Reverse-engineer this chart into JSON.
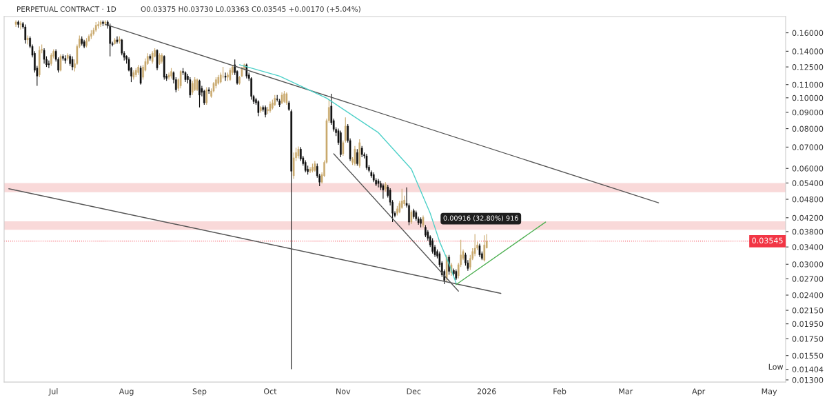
{
  "chart_data": {
    "type": "candlestick",
    "title": "PERPETUAL CONTRACT · 1D",
    "subtitle": "O0.03375 H0.03730 L0.03363 C0.03545 +0.00170 (+5.04%)",
    "colors": [
      "#c9a96e",
      "#0d0d0d",
      "#c9a96e",
      "#0d0d0d",
      "#0d0d0d",
      "#c9a96e",
      "#0d0d0d",
      "#0d0d0d",
      "#0d0d0d",
      "#0d0d0d",
      "#c9a96e",
      "#c9a96e",
      "#0d0d0d",
      "#0d0d0d",
      "#0d0d0d",
      "#c9a96e",
      "#c9a96e",
      "#0d0d0d",
      "#0d0d0d",
      "#c9a96e",
      "#0d0d0d",
      "#0d0d0d",
      "#c9a96e",
      "#0d0d0d",
      "#0d0d0d",
      "#c9a96e",
      "#c9a96e",
      "#c9a96e",
      "#0d0d0d",
      "#0d0d0d",
      "#c9a96e",
      "#c9a96e",
      "#c9a96e",
      "#c9a96e",
      "#c9a96e",
      "#c9a96e",
      "#c9a96e",
      "#0d0d0d",
      "#c9a96e",
      "#0d0d0d",
      "#0d0d0d",
      "#0d0d0d",
      "#c9a96e",
      "#0d0d0d",
      "#c9a96e",
      "#0d0d0d",
      "#0d0d0d",
      "#0d0d0d",
      "#0d0d0d",
      "#0d0d0d",
      "#c9a96e",
      "#c9a96e",
      "#c9a96e",
      "#0d0d0d",
      "#c9a96e",
      "#c9a96e",
      "#c9a96e",
      "#0d0d0d",
      "#c9a96e",
      "#c9a96e",
      "#0d0d0d",
      "#c9a96e",
      "#c9a96e",
      "#0d0d0d",
      "#0d0d0d",
      "#c9a96e",
      "#c9a96e",
      "#0d0d0d",
      "#0d0d0d",
      "#c9a96e",
      "#c9a96e",
      "#0d0d0d",
      "#0d0d0d",
      "#0d0d0d",
      "#0d0d0d",
      "#c9a96e",
      "#c9a96e",
      "#c9a96e",
      "#0d0d0d",
      "#0d0d0d",
      "#0d0d0d",
      "#c9a96e",
      "#0d0d0d",
      "#c9a96e",
      "#c9a96e",
      "#c9a96e",
      "#c9a96e",
      "#c9a96e",
      "#c9a96e",
      "#0d0d0d",
      "#c9a96e",
      "#c9a96e",
      "#c9a96e",
      "#0d0d0d",
      "#0d0d0d",
      "#c9a96e",
      "#c9a96e",
      "#c9a96e",
      "#0d0d0d",
      "#0d0d0d",
      "#0d0d0d",
      "#0d0d0d",
      "#0d0d0d",
      "#0d0d0d",
      "#c9a96e",
      "#0d0d0d",
      "#0d0d0d",
      "#c9a96e",
      "#c9a96e",
      "#c9a96e",
      "#c9a96e",
      "#0d0d0d",
      "#0d0d0d",
      "#c9a96e",
      "#c9a96e",
      "#c9a96e",
      "#0d0d0d",
      "#0d0d0d",
      "#c9a96e",
      "#c9a96e",
      "#c9a96e",
      "#0d0d0d",
      "#0d0d0d",
      "#0d0d0d",
      "#0d0d0d",
      "#c9a96e",
      "#c9a96e",
      "#c9a96e",
      "#0d0d0d",
      "#0d0d0d",
      "#c9a96e",
      "#c9a96e",
      "#c9a96e",
      "#c9a96e",
      "#0d0d0d",
      "#0d0d0d",
      "#0d0d0d",
      "#0d0d0d",
      "#0d0d0d",
      "#c9a96e",
      "#c9a96e",
      "#0d0d0d",
      "#0d0d0d",
      "#c9a96e",
      "#c9a96e",
      "#0d0d0d",
      "#c9a96e",
      "#0d0d0d",
      "#0d0d0d",
      "#0d0d0d",
      "#0d0d0d",
      "#0d0d0d",
      "#0d0d0d",
      "#0d0d0d",
      "#0d0d0d",
      "#0d0d0d",
      "#0d0d0d",
      "#c9a96e",
      "#0d0d0d",
      "#0d0d0d",
      "#0d0d0d",
      "#0d0d0d",
      "#c9a96e",
      "#c9a96e",
      "#c9a96e",
      "#c9a96e",
      "#0d0d0d",
      "#0d0d0d",
      "#c9a96e",
      "#0d0d0d",
      "#0d0d0d",
      "#0d0d0d",
      "#0d0d0d",
      "#c9a96e",
      "#0d0d0d",
      "#0d0d0d",
      "#0d0d0d",
      "#0d0d0d",
      "#0d0d0d",
      "#0d0d0d",
      "#0d0d0d",
      "#0d0d0d",
      "#0d0d0d",
      "#c9a96e",
      "#0d0d0d",
      "#c9a96e",
      "#0d0d0d",
      "#0d0d0d",
      "#c9a96e",
      "#c9a96e",
      "#c9a96e",
      "#0d0d0d",
      "#0d0d0d",
      "#c9a96e",
      "#c9a96e",
      "#c9a96e",
      "#c9a96e",
      "#0d0d0d",
      "#0d0d0d",
      "#c9a96e",
      "#c9a96e"
    ],
    "x": [
      "2025-06-15",
      "2025-06-16",
      "2025-06-17",
      "2025-06-18",
      "2025-06-19",
      "2025-06-20",
      "2025-06-21",
      "2025-06-22",
      "2025-06-23",
      "2025-06-24",
      "2025-06-25",
      "2025-06-26",
      "2025-06-27",
      "2025-06-28",
      "2025-06-29",
      "2025-06-30",
      "2025-07-01",
      "2025-07-02",
      "2025-07-03",
      "2025-07-04",
      "2025-07-05",
      "2025-07-06",
      "2025-07-07",
      "2025-07-08",
      "2025-07-09",
      "2025-07-10",
      "2025-07-11",
      "2025-07-12",
      "2025-07-13",
      "2025-07-14",
      "2025-07-15",
      "2025-07-16",
      "2025-07-17",
      "2025-07-18",
      "2025-07-19",
      "2025-07-20",
      "2025-07-21",
      "2025-07-22",
      "2025-07-23",
      "2025-07-24",
      "2025-07-25",
      "2025-07-26",
      "2025-07-27",
      "2025-07-28",
      "2025-07-29",
      "2025-07-30",
      "2025-07-31",
      "2025-08-01",
      "2025-08-02",
      "2025-08-03",
      "2025-08-04",
      "2025-08-05",
      "2025-08-06",
      "2025-08-07",
      "2025-08-08",
      "2025-08-09",
      "2025-08-10",
      "2025-08-11",
      "2025-08-12",
      "2025-08-13",
      "2025-08-14",
      "2025-08-15",
      "2025-08-16",
      "2025-08-17",
      "2025-08-18",
      "2025-08-19",
      "2025-08-20",
      "2025-08-21",
      "2025-08-22",
      "2025-08-23",
      "2025-08-24",
      "2025-08-25",
      "2025-08-26",
      "2025-08-27",
      "2025-08-28",
      "2025-08-29",
      "2025-08-30",
      "2025-08-31",
      "2025-09-01",
      "2025-09-02",
      "2025-09-03",
      "2025-09-04",
      "2025-09-05",
      "2025-09-06",
      "2025-09-07",
      "2025-09-08",
      "2025-09-09",
      "2025-09-10",
      "2025-09-11",
      "2025-09-12",
      "2025-09-13",
      "2025-09-14",
      "2025-09-15",
      "2025-09-16",
      "2025-09-17",
      "2025-09-18",
      "2025-09-19",
      "2025-09-20",
      "2025-09-21",
      "2025-09-22",
      "2025-09-23",
      "2025-09-24",
      "2025-09-25",
      "2025-09-26",
      "2025-09-27",
      "2025-09-28",
      "2025-09-29",
      "2025-09-30",
      "2025-10-01",
      "2025-10-02",
      "2025-10-03",
      "2025-10-04",
      "2025-10-05",
      "2025-10-06",
      "2025-10-07",
      "2025-10-08",
      "2025-10-09",
      "2025-10-10",
      "2025-10-11",
      "2025-10-12",
      "2025-10-13",
      "2025-10-14",
      "2025-10-15",
      "2025-10-16",
      "2025-10-17",
      "2025-10-18",
      "2025-10-19",
      "2025-10-20",
      "2025-10-21",
      "2025-10-22",
      "2025-10-23",
      "2025-10-24",
      "2025-10-25",
      "2025-10-26",
      "2025-10-27",
      "2025-10-28",
      "2025-10-29",
      "2025-10-30",
      "2025-10-31",
      "2025-11-01",
      "2025-11-02",
      "2025-11-03",
      "2025-11-04",
      "2025-11-05",
      "2025-11-06",
      "2025-11-07",
      "2025-11-08",
      "2025-11-09",
      "2025-11-10",
      "2025-11-11",
      "2025-11-12",
      "2025-11-13",
      "2025-11-14",
      "2025-11-15",
      "2025-11-16",
      "2025-11-17",
      "2025-11-18",
      "2025-11-19",
      "2025-11-20",
      "2025-11-21",
      "2025-11-22",
      "2025-11-23",
      "2025-11-24",
      "2025-11-25",
      "2025-11-26",
      "2025-11-27",
      "2025-11-28",
      "2025-11-29",
      "2025-11-30",
      "2025-12-01",
      "2025-12-02",
      "2025-12-03",
      "2025-12-04",
      "2025-12-05",
      "2025-12-06",
      "2025-12-07",
      "2025-12-08",
      "2025-12-09",
      "2025-12-10",
      "2025-12-11",
      "2025-12-12",
      "2025-12-13",
      "2025-12-14",
      "2025-12-15",
      "2025-12-16",
      "2025-12-17",
      "2025-12-18",
      "2025-12-19",
      "2025-12-20",
      "2025-12-21",
      "2025-12-22",
      "2025-12-23",
      "2025-12-24",
      "2025-12-25",
      "2025-12-26",
      "2025-12-27",
      "2025-12-28",
      "2025-12-29",
      "2025-12-30",
      "2025-12-31",
      "2026-01-01"
    ],
    "ohlc": [
      [
        0.17,
        0.175,
        0.167,
        0.173
      ],
      [
        0.173,
        0.175,
        0.166,
        0.17
      ],
      [
        0.17,
        0.174,
        0.164,
        0.171
      ],
      [
        0.171,
        0.173,
        0.165,
        0.167
      ],
      [
        0.167,
        0.17,
        0.148,
        0.152
      ],
      [
        0.152,
        0.157,
        0.147,
        0.154
      ],
      [
        0.154,
        0.156,
        0.143,
        0.145
      ],
      [
        0.145,
        0.147,
        0.134,
        0.136
      ],
      [
        0.138,
        0.14,
        0.12,
        0.122
      ],
      [
        0.124,
        0.126,
        0.109,
        0.117
      ],
      [
        0.118,
        0.145,
        0.116,
        0.141
      ],
      [
        0.141,
        0.147,
        0.138,
        0.142
      ],
      [
        0.141,
        0.143,
        0.128,
        0.132
      ],
      [
        0.132,
        0.135,
        0.125,
        0.127
      ],
      [
        0.128,
        0.131,
        0.124,
        0.127
      ],
      [
        0.128,
        0.138,
        0.126,
        0.136
      ],
      [
        0.135,
        0.142,
        0.133,
        0.14
      ],
      [
        0.14,
        0.142,
        0.13,
        0.132
      ],
      [
        0.132,
        0.134,
        0.12,
        0.122
      ],
      [
        0.122,
        0.137,
        0.121,
        0.135
      ],
      [
        0.135,
        0.137,
        0.131,
        0.133
      ],
      [
        0.133,
        0.136,
        0.128,
        0.131
      ],
      [
        0.133,
        0.138,
        0.131,
        0.136
      ],
      [
        0.135,
        0.137,
        0.126,
        0.128
      ],
      [
        0.132,
        0.135,
        0.122,
        0.125
      ],
      [
        0.124,
        0.132,
        0.121,
        0.128
      ],
      [
        0.128,
        0.147,
        0.127,
        0.145
      ],
      [
        0.145,
        0.157,
        0.143,
        0.153
      ],
      [
        0.153,
        0.156,
        0.146,
        0.148
      ],
      [
        0.15,
        0.152,
        0.143,
        0.145
      ],
      [
        0.146,
        0.154,
        0.144,
        0.151
      ],
      [
        0.151,
        0.158,
        0.15,
        0.156
      ],
      [
        0.156,
        0.163,
        0.153,
        0.159
      ],
      [
        0.159,
        0.166,
        0.157,
        0.163
      ],
      [
        0.163,
        0.173,
        0.161,
        0.169
      ],
      [
        0.168,
        0.174,
        0.165,
        0.17
      ],
      [
        0.17,
        0.175,
        0.167,
        0.173
      ],
      [
        0.173,
        0.175,
        0.168,
        0.171
      ],
      [
        0.171,
        0.175,
        0.168,
        0.173
      ],
      [
        0.173,
        0.175,
        0.165,
        0.168
      ],
      [
        0.168,
        0.171,
        0.135,
        0.148
      ],
      [
        0.148,
        0.15,
        0.145,
        0.147
      ],
      [
        0.148,
        0.154,
        0.147,
        0.152
      ],
      [
        0.152,
        0.156,
        0.148,
        0.15
      ],
      [
        0.151,
        0.156,
        0.148,
        0.153
      ],
      [
        0.152,
        0.153,
        0.136,
        0.138
      ],
      [
        0.138,
        0.14,
        0.131,
        0.134
      ],
      [
        0.135,
        0.136,
        0.128,
        0.132
      ],
      [
        0.132,
        0.134,
        0.121,
        0.122
      ],
      [
        0.124,
        0.125,
        0.112,
        0.117
      ],
      [
        0.116,
        0.122,
        0.114,
        0.12
      ],
      [
        0.118,
        0.124,
        0.116,
        0.122
      ],
      [
        0.12,
        0.127,
        0.118,
        0.125
      ],
      [
        0.124,
        0.126,
        0.11,
        0.111
      ],
      [
        0.116,
        0.127,
        0.114,
        0.125
      ],
      [
        0.122,
        0.133,
        0.121,
        0.13
      ],
      [
        0.128,
        0.138,
        0.127,
        0.135
      ],
      [
        0.135,
        0.137,
        0.131,
        0.133
      ],
      [
        0.13,
        0.14,
        0.128,
        0.138
      ],
      [
        0.135,
        0.143,
        0.134,
        0.141
      ],
      [
        0.141,
        0.142,
        0.122,
        0.124
      ],
      [
        0.128,
        0.138,
        0.127,
        0.136
      ],
      [
        0.13,
        0.138,
        0.128,
        0.136
      ],
      [
        0.135,
        0.136,
        0.114,
        0.116
      ],
      [
        0.117,
        0.119,
        0.113,
        0.115
      ],
      [
        0.116,
        0.12,
        0.114,
        0.118
      ],
      [
        0.117,
        0.124,
        0.115,
        0.121
      ],
      [
        0.12,
        0.121,
        0.111,
        0.114
      ],
      [
        0.114,
        0.116,
        0.104,
        0.106
      ],
      [
        0.107,
        0.115,
        0.105,
        0.114
      ],
      [
        0.109,
        0.122,
        0.107,
        0.121
      ],
      [
        0.121,
        0.124,
        0.118,
        0.12
      ],
      [
        0.12,
        0.121,
        0.112,
        0.114
      ],
      [
        0.117,
        0.119,
        0.111,
        0.114
      ],
      [
        0.114,
        0.116,
        0.1,
        0.102
      ],
      [
        0.104,
        0.113,
        0.102,
        0.111
      ],
      [
        0.106,
        0.116,
        0.105,
        0.114
      ],
      [
        0.106,
        0.115,
        0.105,
        0.114
      ],
      [
        0.113,
        0.114,
        0.0933,
        0.102
      ],
      [
        0.107,
        0.109,
        0.101,
        0.104
      ],
      [
        0.105,
        0.106,
        0.095,
        0.0964
      ],
      [
        0.0964,
        0.108,
        0.095,
        0.106
      ],
      [
        0.106,
        0.108,
        0.103,
        0.105
      ],
      [
        0.101,
        0.107,
        0.1,
        0.105
      ],
      [
        0.105,
        0.112,
        0.104,
        0.111
      ],
      [
        0.109,
        0.116,
        0.107,
        0.114
      ],
      [
        0.111,
        0.118,
        0.11,
        0.116
      ],
      [
        0.112,
        0.12,
        0.111,
        0.118
      ],
      [
        0.117,
        0.125,
        0.115,
        0.117
      ],
      [
        0.117,
        0.12,
        0.113,
        0.116
      ],
      [
        0.116,
        0.12,
        0.113,
        0.118
      ],
      [
        0.114,
        0.124,
        0.113,
        0.122
      ],
      [
        0.12,
        0.127,
        0.118,
        0.125
      ],
      [
        0.127,
        0.132,
        0.118,
        0.12
      ],
      [
        0.121,
        0.122,
        0.11,
        0.111
      ],
      [
        0.111,
        0.117,
        0.11,
        0.116
      ],
      [
        0.117,
        0.125,
        0.116,
        0.124
      ],
      [
        0.124,
        0.128,
        0.122,
        0.127
      ],
      [
        0.127,
        0.128,
        0.115,
        0.117
      ],
      [
        0.118,
        0.12,
        0.113,
        0.115
      ],
      [
        0.115,
        0.116,
        0.0987,
        0.101
      ],
      [
        0.101,
        0.102,
        0.0955,
        0.0973
      ],
      [
        0.0987,
        0.1,
        0.095,
        0.0964
      ],
      [
        0.0973,
        0.0982,
        0.0876,
        0.0898
      ],
      [
        0.091,
        0.0942,
        0.0898,
        0.0933
      ],
      [
        0.0933,
        0.0946,
        0.0906,
        0.0919
      ],
      [
        0.0933,
        0.0946,
        0.0868,
        0.0885
      ],
      [
        0.091,
        0.0937,
        0.0889,
        0.0919
      ],
      [
        0.091,
        0.0973,
        0.0898,
        0.0955
      ],
      [
        0.0928,
        0.0987,
        0.0919,
        0.0964
      ],
      [
        0.0951,
        0.102,
        0.0942,
        0.0997
      ],
      [
        0.0992,
        0.102,
        0.0973,
        0.0987
      ],
      [
        0.0978,
        0.0992,
        0.0937,
        0.0951
      ],
      [
        0.0964,
        0.104,
        0.0955,
        0.102
      ],
      [
        0.0973,
        0.105,
        0.0964,
        0.103
      ],
      [
        0.0964,
        0.104,
        0.095,
        0.103
      ],
      [
        0.0964,
        0.0978,
        0.091,
        0.0919
      ],
      [
        0.0906,
        0.0919,
        0.01404,
        0.0588
      ],
      [
        0.0569,
        0.0673,
        0.0556,
        0.0648
      ],
      [
        0.0648,
        0.0697,
        0.0633,
        0.0673
      ],
      [
        0.0657,
        0.0703,
        0.0645,
        0.069
      ],
      [
        0.069,
        0.07,
        0.0633,
        0.0642
      ],
      [
        0.0648,
        0.0657,
        0.0612,
        0.0621
      ],
      [
        0.0627,
        0.0636,
        0.0583,
        0.0591
      ],
      [
        0.0597,
        0.0612,
        0.0574,
        0.0586
      ],
      [
        0.0588,
        0.0606,
        0.058,
        0.0597
      ],
      [
        0.0591,
        0.0621,
        0.0583,
        0.0606
      ],
      [
        0.0591,
        0.0633,
        0.0586,
        0.0621
      ],
      [
        0.0609,
        0.0621,
        0.0561,
        0.0569
      ],
      [
        0.0569,
        0.0577,
        0.0528,
        0.0543
      ],
      [
        0.0543,
        0.0583,
        0.0538,
        0.0574
      ],
      [
        0.0569,
        0.0636,
        0.0564,
        0.0627
      ],
      [
        0.0627,
        0.086,
        0.0621,
        0.0848
      ],
      [
        0.0848,
        0.0987,
        0.0835,
        0.0933
      ],
      [
        0.0942,
        0.103,
        0.0823,
        0.0835
      ],
      [
        0.0848,
        0.086,
        0.0784,
        0.0796
      ],
      [
        0.0796,
        0.0808,
        0.0759,
        0.0777
      ],
      [
        0.0788,
        0.08,
        0.0712,
        0.0723
      ],
      [
        0.0777,
        0.0788,
        0.0651,
        0.0663
      ],
      [
        0.0667,
        0.0734,
        0.0657,
        0.0723
      ],
      [
        0.0734,
        0.0868,
        0.0723,
        0.0815
      ],
      [
        0.0815,
        0.0827,
        0.0723,
        0.0734
      ],
      [
        0.0734,
        0.0745,
        0.0633,
        0.0642
      ],
      [
        0.0627,
        0.0651,
        0.0615,
        0.0642
      ],
      [
        0.0621,
        0.0706,
        0.0612,
        0.069
      ],
      [
        0.0673,
        0.069,
        0.0612,
        0.0621
      ],
      [
        0.0612,
        0.0741,
        0.0603,
        0.0723
      ],
      [
        0.0695,
        0.0706,
        0.0651,
        0.0663
      ],
      [
        0.0663,
        0.0673,
        0.0645,
        0.0657
      ],
      [
        0.0657,
        0.0667,
        0.0594,
        0.0603
      ],
      [
        0.0606,
        0.0615,
        0.0583,
        0.0591
      ],
      [
        0.0583,
        0.0591,
        0.0561,
        0.0569
      ],
      [
        0.0574,
        0.0583,
        0.0543,
        0.0551
      ],
      [
        0.0551,
        0.0559,
        0.0528,
        0.0535
      ],
      [
        0.0548,
        0.0556,
        0.0523,
        0.0538
      ],
      [
        0.0538,
        0.0548,
        0.0513,
        0.0523
      ],
      [
        0.053,
        0.0538,
        0.0482,
        0.0513
      ],
      [
        0.0518,
        0.0543,
        0.0508,
        0.0535
      ],
      [
        0.0525,
        0.0533,
        0.0486,
        0.0493
      ],
      [
        0.0513,
        0.052,
        0.0459,
        0.047
      ],
      [
        0.047,
        0.0477,
        0.0407,
        0.0434
      ],
      [
        0.0434,
        0.044,
        0.0421,
        0.0427
      ],
      [
        0.0434,
        0.0457,
        0.0427,
        0.0448
      ],
      [
        0.0438,
        0.0474,
        0.0434,
        0.0466
      ],
      [
        0.0452,
        0.0518,
        0.0448,
        0.0474
      ],
      [
        0.0464,
        0.0493,
        0.0457,
        0.0477
      ],
      [
        0.0466,
        0.0523,
        0.0452,
        0.0459
      ],
      [
        0.0459,
        0.0466,
        0.0398,
        0.0407
      ],
      [
        0.0407,
        0.0444,
        0.0401,
        0.0438
      ],
      [
        0.0442,
        0.0448,
        0.0417,
        0.0423
      ],
      [
        0.0436,
        0.0442,
        0.0411,
        0.0417
      ],
      [
        0.0417,
        0.0423,
        0.0399,
        0.0405
      ],
      [
        0.0415,
        0.0421,
        0.0392,
        0.0403
      ],
      [
        0.0398,
        0.0427,
        0.0392,
        0.0421
      ],
      [
        0.0392,
        0.0398,
        0.0365,
        0.037
      ],
      [
        0.0379,
        0.0384,
        0.0356,
        0.0362
      ],
      [
        0.0366,
        0.037,
        0.034,
        0.0345
      ],
      [
        0.0356,
        0.0362,
        0.0324,
        0.0329
      ],
      [
        0.034,
        0.0345,
        0.0316,
        0.0321
      ],
      [
        0.0329,
        0.0334,
        0.0313,
        0.0318
      ],
      [
        0.0324,
        0.0329,
        0.0294,
        0.0299
      ],
      [
        0.0303,
        0.0307,
        0.0274,
        0.0278
      ],
      [
        0.0285,
        0.0289,
        0.026,
        0.0267
      ],
      [
        0.0271,
        0.0321,
        0.0265,
        0.0316
      ],
      [
        0.0316,
        0.0321,
        0.0278,
        0.0285
      ],
      [
        0.0282,
        0.0303,
        0.0276,
        0.0299
      ],
      [
        0.0287,
        0.0291,
        0.0276,
        0.028
      ],
      [
        0.0285,
        0.0289,
        0.0268,
        0.0271
      ],
      [
        0.0276,
        0.0303,
        0.0271,
        0.0299
      ],
      [
        0.0299,
        0.0358,
        0.0294,
        0.0321
      ],
      [
        0.0313,
        0.0334,
        0.0309,
        0.0329
      ],
      [
        0.0321,
        0.0326,
        0.0297,
        0.0303
      ],
      [
        0.0303,
        0.0309,
        0.0286,
        0.0291
      ],
      [
        0.0294,
        0.0321,
        0.0288,
        0.0313
      ],
      [
        0.0313,
        0.0337,
        0.0309,
        0.0329
      ],
      [
        0.0324,
        0.0373,
        0.0318,
        0.0337
      ],
      [
        0.0337,
        0.0353,
        0.0332,
        0.0345
      ],
      [
        0.0343,
        0.0348,
        0.0316,
        0.0321
      ],
      [
        0.0324,
        0.0329,
        0.0309,
        0.0313
      ],
      [
        0.0309,
        0.037,
        0.0306,
        0.0345
      ],
      [
        0.03375,
        0.0373,
        0.03363,
        0.03545
      ]
    ],
    "series": [
      {
        "type": "line",
        "color": "#555555",
        "x": [
          "2025-07-23",
          "2026-03-15"
        ],
        "values": [
          0.17,
          0.0468
        ]
      },
      {
        "type": "line",
        "color": "#555555",
        "x": [
          "2025-06-12",
          "2026-01-07"
        ],
        "values": [
          0.0518,
          0.0243
        ]
      },
      {
        "type": "line",
        "color": "#555555",
        "x": [
          "2025-10-28",
          "2025-12-20"
        ],
        "values": [
          0.0667,
          0.0247
        ]
      },
      {
        "type": "line",
        "color": "#4dd0c8",
        "x": [
          "2025-09-18",
          "2025-10-05",
          "2025-10-25",
          "2025-11-16",
          "2025-11-30",
          "2025-12-08",
          "2025-12-12",
          "2025-12-16",
          "2025-12-19"
        ],
        "values": [
          0.127,
          0.117,
          0.0997,
          0.0777,
          0.0597,
          0.0434,
          0.0353,
          0.0301,
          0.0262
        ]
      },
      {
        "type": "line",
        "color": "#4caf50",
        "x": [
          "2025-12-19",
          "2026-01-26"
        ],
        "values": [
          0.0259,
          0.0407
        ]
      }
    ],
    "bands": [
      {
        "axis": "y",
        "from": 0.0505,
        "to": 0.054,
        "color": "#f8d0d0"
      },
      {
        "axis": "y",
        "from": 0.0385,
        "to": 0.0409,
        "color": "#f8d0d0"
      }
    ],
    "ref_lines": [
      {
        "axis": "y",
        "value": 0.03545,
        "label": "0.03545",
        "color": "#f23645",
        "line_style": "dotted"
      }
    ],
    "annotations": [
      "0.00916 (32.80%) 916",
      "Low"
    ],
    "log": "y",
    "xlim": [
      "2025-06-10",
      "2026-05-08"
    ],
    "xticks": [
      {
        "value": "2025-07-01",
        "label": "Jul"
      },
      {
        "value": "2025-08-01",
        "label": "Aug"
      },
      {
        "value": "2025-09-01",
        "label": "Sep"
      },
      {
        "value": "2025-10-01",
        "label": "Oct"
      },
      {
        "value": "2025-11-01",
        "label": "Nov"
      },
      {
        "value": "2025-12-01",
        "label": "Dec"
      },
      {
        "value": "2026-01-01",
        "label": "2026"
      },
      {
        "value": "2026-02-01",
        "label": "Feb"
      },
      {
        "value": "2026-03-01",
        "label": "Mar"
      },
      {
        "value": "2026-04-01",
        "label": "Apr"
      },
      {
        "value": "2026-05-01",
        "label": "May"
      }
    ],
    "ylim": [
      0.0128,
      0.18
    ],
    "yticks": [
      {
        "value": 0.16,
        "label": "0.16000"
      },
      {
        "value": 0.14,
        "label": "0.14000"
      },
      {
        "value": 0.125,
        "label": "0.12500"
      },
      {
        "value": 0.11,
        "label": "0.11000"
      },
      {
        "value": 0.1,
        "label": "0.10000"
      },
      {
        "value": 0.09,
        "label": "0.09000"
      },
      {
        "value": 0.08,
        "label": "0.08000"
      },
      {
        "value": 0.07,
        "label": "0.07000"
      },
      {
        "value": 0.06,
        "label": "0.06000"
      },
      {
        "value": 0.054,
        "label": "0.05400"
      },
      {
        "value": 0.048,
        "label": "0.04800"
      },
      {
        "value": 0.042,
        "label": "0.04200"
      },
      {
        "value": 0.038,
        "label": "0.03800"
      },
      {
        "value": 0.034,
        "label": "0.03400"
      },
      {
        "value": 0.03,
        "label": "0.03000"
      },
      {
        "value": 0.027,
        "label": "0.02700"
      },
      {
        "value": 0.024,
        "label": "0.02400"
      },
      {
        "value": 0.0215,
        "label": "0.02150"
      },
      {
        "value": 0.0195,
        "label": "0.01950"
      },
      {
        "value": 0.0175,
        "label": "0.01750"
      },
      {
        "value": 0.0155,
        "label": "0.01550"
      },
      {
        "value": 0.01404,
        "label": "0.01404"
      },
      {
        "value": 0.013,
        "label": "0.01300"
      }
    ],
    "grid": false
  }
}
